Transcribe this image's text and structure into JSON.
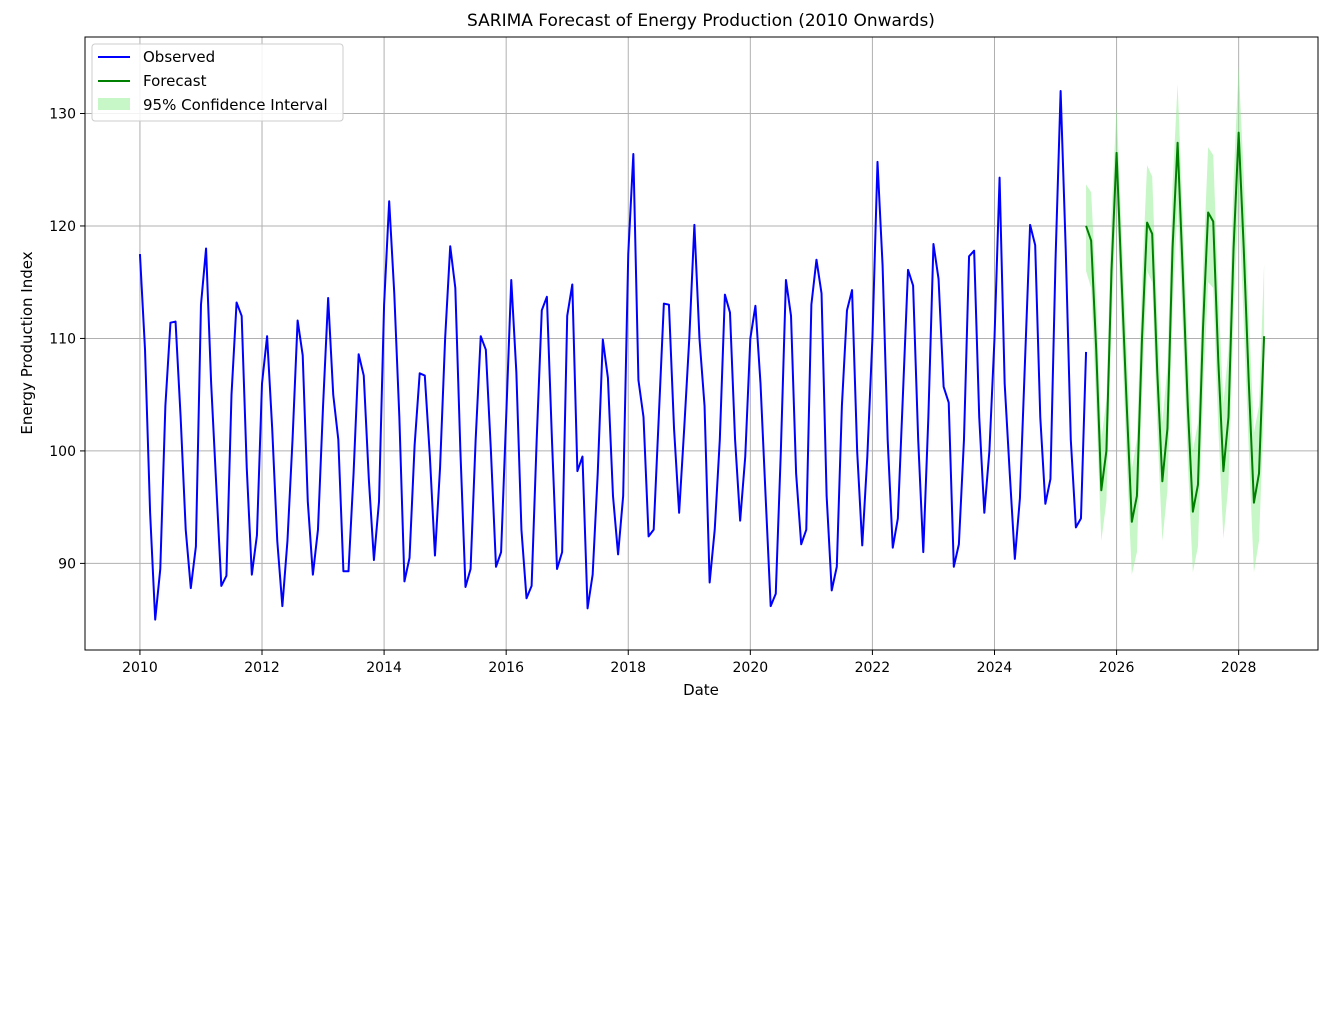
{
  "chart_data": {
    "type": "line",
    "title": "SARIMA Forecast of Energy Production (2010 Onwards)",
    "xlabel": "Date",
    "ylabel": "Energy Production Index",
    "xlim": [
      2009.1,
      2029.3
    ],
    "ylim": [
      82.3,
      136.8
    ],
    "grid": true,
    "legend_position": "top-left",
    "x_ticks": [
      2010,
      2012,
      2014,
      2016,
      2018,
      2020,
      2022,
      2024,
      2026,
      2028
    ],
    "y_ticks": [
      90,
      100,
      110,
      120,
      130
    ],
    "colors": {
      "observed": "#0000ff",
      "forecast": "#008000",
      "confidence_fill": "#90ee90",
      "grid": "#b0b0b0"
    },
    "legend": [
      {
        "label": "Observed",
        "kind": "line",
        "color": "#0000ff"
      },
      {
        "label": "Forecast",
        "kind": "line",
        "color": "#008000"
      },
      {
        "label": "95% Confidence Interval",
        "kind": "fill",
        "color": "#90ee90"
      }
    ],
    "observed": {
      "name": "Observed",
      "start": "2010-01",
      "frequency": "monthly",
      "values": [
        117.5,
        109.0,
        94.5,
        85.0,
        89.5,
        104.0,
        111.4,
        111.5,
        103.0,
        93.0,
        87.8,
        91.5,
        113.0,
        118.0,
        106.0,
        97.0,
        88.0,
        88.9,
        105.0,
        113.2,
        112.0,
        98.5,
        89.0,
        92.5,
        106.0,
        110.2,
        102.0,
        92.0,
        86.2,
        92.0,
        101.0,
        111.6,
        108.5,
        95.5,
        89.0,
        93.0,
        104.0,
        113.6,
        105.0,
        101.0,
        89.3,
        89.3,
        98.0,
        108.6,
        106.7,
        97.5,
        90.3,
        95.5,
        113.0,
        122.2,
        114.0,
        103.0,
        88.4,
        90.5,
        100.5,
        106.9,
        106.7,
        99.5,
        90.7,
        98.5,
        110.0,
        118.2,
        114.5,
        100.0,
        87.9,
        89.5,
        101.0,
        110.2,
        109.0,
        100.0,
        89.7,
        91.0,
        103.0,
        115.2,
        107.0,
        93.0,
        86.9,
        88.0,
        101.0,
        112.5,
        113.7,
        101.0,
        89.5,
        91.0,
        112.0,
        114.8,
        98.2,
        99.5,
        86.0,
        89.0,
        98.0,
        109.9,
        106.5,
        96.0,
        90.8,
        96.0,
        117.5,
        126.4,
        106.3,
        103.0,
        92.4,
        93.0,
        103.0,
        113.1,
        113.0,
        102.0,
        94.5,
        102.0,
        110.0,
        120.1,
        110.0,
        104.0,
        88.3,
        93.0,
        101.0,
        113.9,
        112.3,
        101.0,
        93.8,
        99.5,
        110.0,
        112.9,
        106.0,
        96.0,
        86.2,
        87.3,
        100.0,
        115.2,
        112.0,
        98.0,
        91.7,
        93.0,
        113.0,
        117.0,
        114.0,
        96.0,
        87.6,
        89.7,
        104.0,
        112.5,
        114.3,
        100.0,
        91.6,
        99.5,
        110.0,
        125.7,
        116.5,
        101.0,
        91.4,
        94.0,
        105.0,
        116.1,
        114.7,
        101.0,
        91.0,
        103.0,
        118.4,
        115.3,
        105.7,
        104.3,
        89.7,
        91.7,
        101.0,
        117.3,
        117.8,
        103.0,
        94.5,
        100.0,
        110.0,
        124.3,
        106.0,
        98.0,
        90.4,
        95.8,
        108.0,
        120.1,
        118.3,
        103.0,
        95.3,
        97.5,
        117.0,
        132.0,
        118.0,
        101.0,
        93.2,
        94.0,
        108.8
      ]
    },
    "forecast": {
      "name": "Forecast",
      "start": "2025-07",
      "frequency": "monthly",
      "values": [
        120.0,
        118.7,
        109.0,
        96.5,
        100.0,
        116.0,
        126.5,
        115.0,
        104.0,
        93.7,
        96.0,
        110.0,
        120.3,
        119.3,
        107.0,
        97.3,
        102.0,
        118.0,
        127.4,
        116.0,
        104.0,
        94.6,
        97.0,
        111.0,
        121.2,
        120.4,
        108.0,
        98.2,
        103.0,
        118.0,
        128.3,
        118.0,
        106.0,
        95.4,
        98.0,
        110.2
      ],
      "lower": [
        116.0,
        114.5,
        104.0,
        92.0,
        95.5,
        111.0,
        123.0,
        110.5,
        99.0,
        89.0,
        91.0,
        105.0,
        116.0,
        115.0,
        102.0,
        92.0,
        96.5,
        112.5,
        122.0,
        111.0,
        99.0,
        89.2,
        91.5,
        105.0,
        115.0,
        114.5,
        102.0,
        92.2,
        97.0,
        112.0,
        122.5,
        111.5,
        100.0,
        89.2,
        92.0,
        104.0
      ],
      "upper": [
        123.7,
        123.0,
        114.0,
        101.0,
        104.5,
        121.0,
        130.6,
        119.5,
        109.0,
        98.4,
        101.0,
        115.0,
        125.4,
        124.4,
        112.0,
        102.5,
        107.5,
        123.5,
        132.6,
        121.0,
        109.0,
        100.0,
        102.5,
        116.0,
        127.0,
        126.3,
        114.0,
        104.2,
        109.0,
        124.0,
        134.2,
        124.5,
        112.0,
        101.6,
        104.0,
        116.6
      ]
    }
  }
}
